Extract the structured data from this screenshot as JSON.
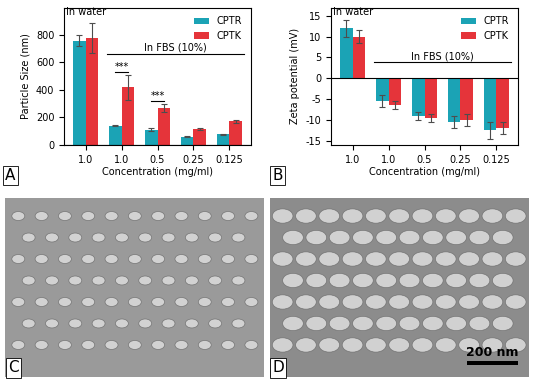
{
  "chart_data": [
    {
      "type": "bar",
      "panel_label": "A",
      "y_label": "Particle Size (nm)",
      "x_label": "Concentration (mg/ml)",
      "categories": [
        "1.0",
        "1.0",
        "0.5",
        "0.25",
        "0.125"
      ],
      "series": [
        {
          "name": "CPTR",
          "color": "#1ba3b5",
          "values": [
            760,
            140,
            110,
            60,
            75
          ],
          "errors": [
            40,
            5,
            10,
            3,
            3
          ]
        },
        {
          "name": "CPTK",
          "color": "#e5343a",
          "values": [
            780,
            420,
            270,
            115,
            170
          ],
          "errors": [
            110,
            90,
            30,
            5,
            10
          ]
        }
      ],
      "groups": [
        {
          "label": "In water",
          "from": 0,
          "to": 0
        },
        {
          "label": "In FBS (10%)",
          "from": 1,
          "to": 4
        }
      ],
      "significance": [
        {
          "index": 1,
          "label": "***"
        },
        {
          "index": 2,
          "label": "***"
        }
      ],
      "ylim": [
        0,
        1000
      ],
      "yticks": [
        0,
        200,
        400,
        600,
        800
      ],
      "legend": "upper right"
    },
    {
      "type": "bar",
      "panel_label": "B",
      "y_label": "Zeta potential (mV)",
      "x_label": "Concentration (mg/ml)",
      "categories": [
        "1.0",
        "1.0",
        "0.5",
        "0.25",
        "0.125"
      ],
      "series": [
        {
          "name": "CPTR",
          "color": "#1ba3b5",
          "values": [
            12,
            -5.5,
            -9,
            -10.5,
            -12.5
          ],
          "errors": [
            2,
            1.5,
            1,
            1.5,
            2
          ]
        },
        {
          "name": "CPTK",
          "color": "#e5343a",
          "values": [
            10,
            -6.5,
            -9.5,
            -10,
            -12
          ],
          "errors": [
            1.5,
            1,
            1,
            1.5,
            1.5
          ]
        }
      ],
      "groups": [
        {
          "label": "In water",
          "from": 0,
          "to": 0
        },
        {
          "label": "In FBS (10%)",
          "from": 1,
          "to": 4
        }
      ],
      "significance": [],
      "ylim": [
        -16,
        17
      ],
      "yticks": [
        -15,
        -10,
        -5,
        0,
        5,
        10,
        15
      ],
      "legend": "upper right"
    }
  ],
  "images": [
    {
      "panel_label": "C"
    },
    {
      "panel_label": "D",
      "scale_bar": "200 nm"
    }
  ]
}
